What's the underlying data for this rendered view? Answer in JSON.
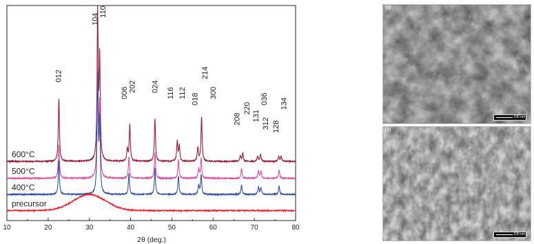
{
  "chart_data": {
    "type": "line",
    "xlabel": "2θ (deg.)",
    "xlim": [
      10,
      80
    ],
    "xticks": [
      10,
      20,
      30,
      40,
      50,
      60,
      70,
      80
    ],
    "ylim": [
      0,
      14
    ],
    "grid": false,
    "series": [
      {
        "name": "600°C",
        "color": "#9b1b30",
        "baseline": 3.85,
        "peaks": [
          {
            "x": 22.6,
            "h": 4.1
          },
          {
            "x": 32.0,
            "h": 9.5
          },
          {
            "x": 32.5,
            "h": 6.5
          },
          {
            "x": 39.2,
            "h": 0.8
          },
          {
            "x": 39.8,
            "h": 2.4
          },
          {
            "x": 45.9,
            "h": 2.8
          },
          {
            "x": 51.3,
            "h": 1.3
          },
          {
            "x": 51.8,
            "h": 1.0
          },
          {
            "x": 56.3,
            "h": 0.9
          },
          {
            "x": 57.2,
            "h": 2.9
          },
          {
            "x": 66.6,
            "h": 0.35
          },
          {
            "x": 67.2,
            "h": 0.55
          },
          {
            "x": 70.8,
            "h": 0.35
          },
          {
            "x": 71.5,
            "h": 0.45
          },
          {
            "x": 75.9,
            "h": 0.35
          },
          {
            "x": 76.5,
            "h": 0.3
          }
        ]
      },
      {
        "name": "500°C",
        "color": "#dd4d9a",
        "baseline": 2.75,
        "peaks": [
          {
            "x": 22.6,
            "h": 2.2
          },
          {
            "x": 32.0,
            "h": 7.6
          },
          {
            "x": 32.5,
            "h": 4.6
          },
          {
            "x": 39.6,
            "h": 1.4
          },
          {
            "x": 45.9,
            "h": 1.7
          },
          {
            "x": 51.6,
            "h": 1.2
          },
          {
            "x": 56.5,
            "h": 0.6
          },
          {
            "x": 57.1,
            "h": 1.3
          },
          {
            "x": 66.9,
            "h": 0.65
          },
          {
            "x": 71.0,
            "h": 0.5
          },
          {
            "x": 71.6,
            "h": 0.45
          },
          {
            "x": 76.0,
            "h": 0.55
          }
        ]
      },
      {
        "name": "400°C",
        "color": "#2f4fa8",
        "baseline": 1.7,
        "peaks": [
          {
            "x": 22.6,
            "h": 2.2
          },
          {
            "x": 32.0,
            "h": 7.6
          },
          {
            "x": 32.5,
            "h": 4.6
          },
          {
            "x": 39.6,
            "h": 1.4
          },
          {
            "x": 45.9,
            "h": 1.7
          },
          {
            "x": 51.6,
            "h": 1.2
          },
          {
            "x": 56.5,
            "h": 0.6
          },
          {
            "x": 57.1,
            "h": 1.3
          },
          {
            "x": 66.9,
            "h": 0.65
          },
          {
            "x": 71.0,
            "h": 0.5
          },
          {
            "x": 71.6,
            "h": 0.45
          },
          {
            "x": 76.0,
            "h": 0.55
          }
        ]
      },
      {
        "name": "precursor",
        "color": "#e8232a",
        "baseline": 0.65,
        "hump": {
          "x": 30.0,
          "h": 1.05,
          "width": 5.5
        },
        "peaks": []
      }
    ],
    "peak_labels": [
      {
        "text": "012",
        "x": 22.6,
        "y": 9.0
      },
      {
        "text": "104",
        "x": 31.5,
        "y": 12.7
      },
      {
        "text": "110",
        "x": 33.4,
        "y": 13.2
      },
      {
        "text": "006",
        "x": 38.6,
        "y": 7.9
      },
      {
        "text": "202",
        "x": 40.5,
        "y": 8.3
      },
      {
        "text": "024",
        "x": 46.0,
        "y": 8.3
      },
      {
        "text": "116",
        "x": 49.8,
        "y": 7.9
      },
      {
        "text": "112",
        "x": 52.6,
        "y": 7.9
      },
      {
        "text": "018",
        "x": 55.7,
        "y": 7.5
      },
      {
        "text": "214",
        "x": 58.1,
        "y": 9.2
      },
      {
        "text": "300",
        "x": 60.1,
        "y": 7.9
      },
      {
        "text": "208",
        "x": 65.9,
        "y": 6.2
      },
      {
        "text": "220",
        "x": 68.3,
        "y": 6.9
      },
      {
        "text": "131",
        "x": 70.5,
        "y": 6.4
      },
      {
        "text": "036",
        "x": 72.5,
        "y": 7.5
      },
      {
        "text": "312",
        "x": 72.8,
        "y": 5.9
      },
      {
        "text": "128",
        "x": 75.3,
        "y": 5.7
      },
      {
        "text": "134",
        "x": 77.3,
        "y": 7.2
      }
    ]
  },
  "micrographs": {
    "a": {
      "tag": "(a)",
      "scale_text": "100 nm"
    },
    "b": {
      "tag": "(b)",
      "scale_text": "100 nm"
    }
  }
}
